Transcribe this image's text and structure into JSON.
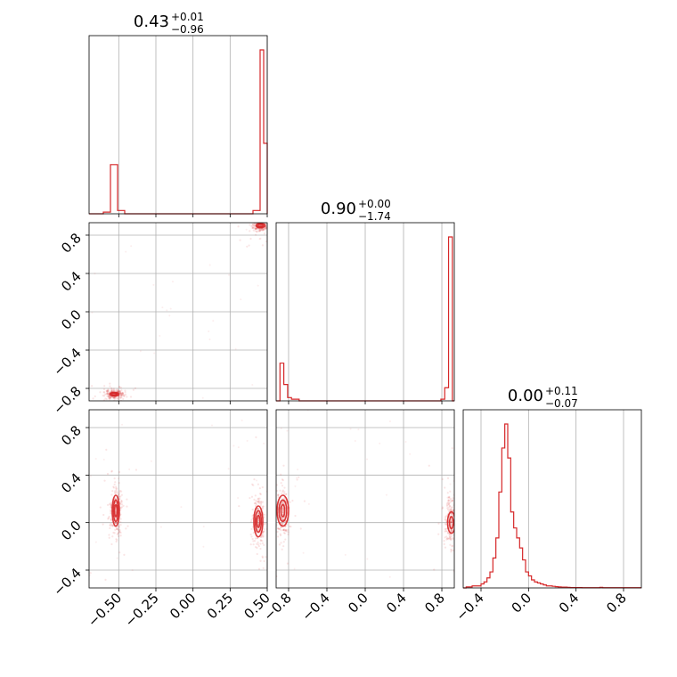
{
  "chart_data": {
    "type": "corner",
    "color": "#d62728",
    "grid": true,
    "parameters": [
      {
        "title": {
          "value": "0.43",
          "plus": "+0.01",
          "minus": "−0.96"
        },
        "range": [
          -0.7,
          0.5
        ],
        "ticks": [
          -0.5,
          -0.25,
          0.0,
          0.25,
          0.5
        ],
        "tick_labels": [
          "−0.50",
          "−0.25",
          "0.00",
          "0.25",
          "0.50"
        ]
      },
      {
        "title": {
          "value": "0.90",
          "plus": "+0.00",
          "minus": "−1.74"
        },
        "range": [
          -0.93,
          0.93
        ],
        "ticks": [
          -0.8,
          -0.4,
          0.0,
          0.4,
          0.8
        ],
        "tick_labels": [
          "−0.8",
          "−0.4",
          "0.0",
          "0.4",
          "0.8"
        ]
      },
      {
        "title": {
          "value": "0.00",
          "plus": "+0.11",
          "minus": "−0.07"
        },
        "range": [
          -0.55,
          0.95
        ],
        "ticks": [
          -0.4,
          0.0,
          0.4,
          0.8
        ],
        "tick_labels": [
          "−0.4",
          "0.0",
          "0.4",
          "0.8"
        ]
      }
    ],
    "histograms": [
      {
        "bin_start": -0.7,
        "bin_width": 0.024,
        "counts": [
          0,
          0,
          0,
          0,
          0.01,
          0.01,
          0.3,
          0.3,
          0.02,
          0.02,
          0,
          0,
          0,
          0,
          0,
          0,
          0,
          0,
          0,
          0,
          0,
          0,
          0,
          0,
          0,
          0,
          0,
          0,
          0,
          0,
          0,
          0,
          0,
          0,
          0,
          0,
          0,
          0,
          0,
          0,
          0,
          0,
          0,
          0,
          0,
          0,
          0.02,
          0.02,
          1.0,
          0.43,
          0
        ]
      },
      {
        "bin_start": -0.93,
        "bin_width": 0.04,
        "counts": [
          0.0,
          0.23,
          0.1,
          0.02,
          0.01,
          0.01,
          0,
          0,
          0,
          0,
          0,
          0,
          0,
          0,
          0,
          0,
          0,
          0,
          0,
          0,
          0,
          0,
          0,
          0,
          0,
          0,
          0,
          0,
          0,
          0,
          0,
          0,
          0,
          0,
          0,
          0,
          0,
          0,
          0,
          0,
          0,
          0,
          0,
          0.01,
          0.08,
          1.0,
          0
        ]
      },
      {
        "bin_start": -0.55,
        "bin_width": 0.025,
        "counts": [
          0,
          0.005,
          0.005,
          0.01,
          0.01,
          0.01,
          0.02,
          0.03,
          0.05,
          0.08,
          0.15,
          0.25,
          0.48,
          0.7,
          0.82,
          0.65,
          0.38,
          0.3,
          0.25,
          0.2,
          0.14,
          0.08,
          0.06,
          0.04,
          0.03,
          0.025,
          0.02,
          0.015,
          0.01,
          0.01,
          0.008,
          0.006,
          0.005,
          0.004,
          0.004,
          0.003,
          0.002,
          0.002,
          0.002,
          0.002,
          0.001,
          0.001,
          0.001,
          0.001,
          0.001,
          0.001,
          0.003,
          0.001,
          0.001,
          0.001,
          0.001,
          0.001,
          0.001,
          0.001,
          0.001,
          0.001,
          0.001,
          0.001,
          0.001,
          0.001
        ]
      }
    ],
    "scatter_2d": [
      {
        "x_param": 0,
        "y_param": 1,
        "clusters": [
          {
            "center": [
              0.455,
              0.9
            ],
            "spread": [
              0.025,
              0.03
            ],
            "contours": [
              [
                0.018,
                0.014
              ],
              [
                0.03,
                0.022
              ]
            ]
          },
          {
            "center": [
              -0.53,
              -0.86
            ],
            "spread": [
              0.03,
              0.025
            ],
            "contours": [
              [
                0.018,
                0.012
              ],
              [
                0.03,
                0.018
              ]
            ]
          }
        ]
      },
      {
        "x_param": 0,
        "y_param": 2,
        "clusters": [
          {
            "center": [
              0.44,
              0.01
            ],
            "spread": [
              0.02,
              0.1
            ],
            "contours": [
              [
                0.01,
                0.05
              ],
              [
                0.02,
                0.09
              ],
              [
                0.03,
                0.13
              ]
            ]
          },
          {
            "center": [
              -0.52,
              0.1
            ],
            "spread": [
              0.02,
              0.1
            ],
            "contours": [
              [
                0.008,
                0.05
              ],
              [
                0.016,
                0.09
              ],
              [
                0.024,
                0.13
              ]
            ]
          }
        ]
      },
      {
        "x_param": 1,
        "y_param": 2,
        "clusters": [
          {
            "center": [
              0.9,
              0.0
            ],
            "spread": [
              0.03,
              0.1
            ],
            "contours": [
              [
                0.02,
                0.05
              ],
              [
                0.04,
                0.09
              ]
            ]
          },
          {
            "center": [
              -0.86,
              0.1
            ],
            "spread": [
              0.03,
              0.1
            ],
            "contours": [
              [
                0.02,
                0.05
              ],
              [
                0.04,
                0.09
              ],
              [
                0.06,
                0.13
              ]
            ]
          }
        ]
      }
    ]
  }
}
